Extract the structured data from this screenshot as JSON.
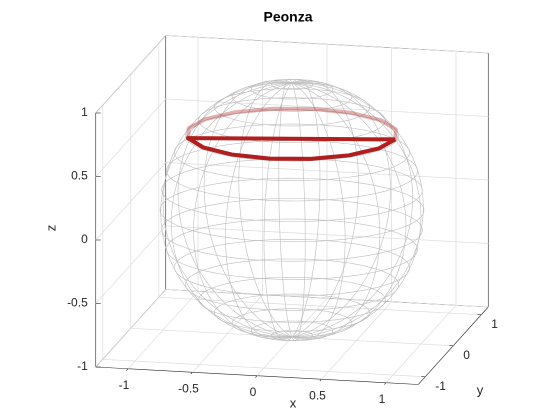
{
  "chart_data": {
    "type": "line3d",
    "title": "Peonza",
    "xlabel": "x",
    "ylabel": "y",
    "zlabel": "z",
    "xlim": [
      -1.25,
      1.25
    ],
    "ylim": [
      -1.25,
      1.25
    ],
    "zlim": [
      -1,
      1
    ],
    "xticks": [
      -1,
      -0.5,
      0,
      0.5,
      1
    ],
    "yticks": [
      -1,
      0,
      1
    ],
    "zticks": [
      -1,
      -0.5,
      0,
      0.5,
      1
    ],
    "grid": true,
    "series": [
      {
        "color": "#b01e1e",
        "x": [
          0.8,
          0.739,
          0.566,
          0.306,
          0,
          -0.306,
          -0.566,
          -0.739,
          -0.8,
          -0.739,
          -0.566,
          -0.306,
          0,
          0.306,
          0.566,
          0.739,
          0.8
        ],
        "y": [
          0,
          0.306,
          0.566,
          0.739,
          0.8,
          0.739,
          0.566,
          0.306,
          0,
          -0.306,
          -0.566,
          -0.739,
          -0.8,
          -0.739,
          -0.566,
          -0.306,
          0
        ],
        "z": [
          0.6,
          0.6,
          0.6,
          0.6,
          0.6,
          0.6,
          0.6,
          0.6,
          0.6,
          0.6,
          0.6,
          0.6,
          0.6,
          0.6,
          0.6,
          0.6,
          0.6
        ]
      }
    ]
  }
}
